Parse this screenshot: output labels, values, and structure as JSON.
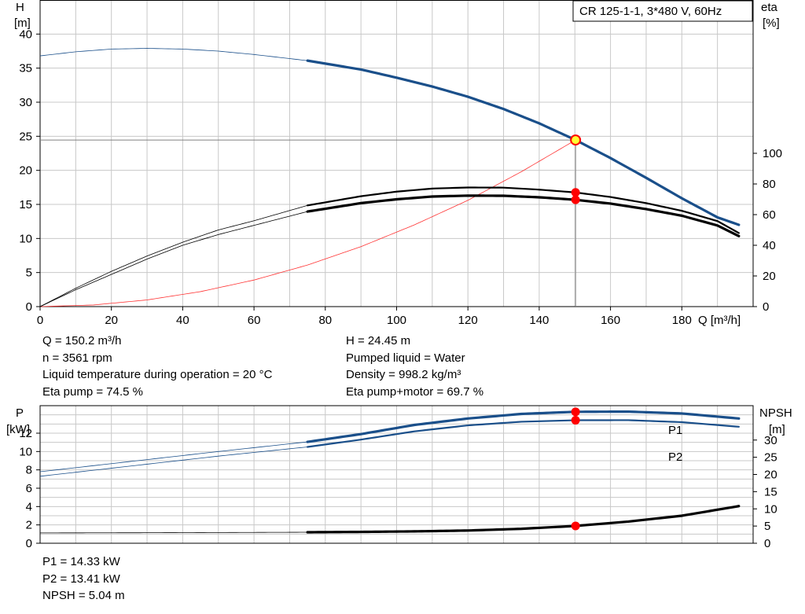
{
  "title_box": "CR 125-1-1, 3*480 V, 60Hz",
  "top_chart": {
    "left_axis_label": [
      "H",
      "[m]"
    ],
    "right_axis_label": [
      "eta",
      "[%]"
    ],
    "x_axis_label": "Q [m³/h]",
    "x_ticks": [
      0,
      20,
      40,
      60,
      80,
      100,
      120,
      140,
      160,
      180
    ],
    "left_ticks": [
      0,
      5,
      10,
      15,
      20,
      25,
      30,
      35,
      40
    ],
    "right_ticks": [
      0,
      20,
      40,
      60,
      80,
      100
    ]
  },
  "bottom_chart": {
    "left_axis_label": [
      "P",
      "[kW]"
    ],
    "right_axis_label": [
      "NPSH",
      "[m]"
    ],
    "left_ticks": [
      0,
      2,
      4,
      6,
      8,
      10,
      12
    ],
    "right_ticks": [
      0,
      5,
      10,
      15,
      20,
      25,
      30
    ],
    "p1_label": "P1",
    "p2_label": "P2"
  },
  "duty_info_left": [
    "Q = 150.2 m³/h",
    "n = 3561 rpm",
    "Liquid temperature during operation = 20 °C",
    "Eta pump = 74.5 %"
  ],
  "duty_info_right": [
    "H = 24.45 m",
    "Pumped liquid = Water",
    "Density = 998.2 kg/m³",
    "Eta pump+motor = 69.7 %"
  ],
  "power_info": [
    "P1 = 14.33 kW",
    "P2 = 13.41 kW",
    "NPSH = 5.04 m"
  ],
  "colors": {
    "head": "#1a4f8a",
    "efficiency": "#000000",
    "system_curve": "#ff3333",
    "power": "#1a4f8a",
    "npsh": "#000000",
    "duty_point": "#ff0000",
    "duty_point_head": "#ffff33",
    "grid": "#c8c8c8"
  },
  "chart_data": [
    {
      "type": "line",
      "title": "CR 125-1-1, 3*480 V, 60Hz",
      "xlabel": "Q [m³/h]",
      "ylabel": "H [m]",
      "y2label": "eta [%]",
      "xlim": [
        0,
        200
      ],
      "ylim": [
        0,
        45
      ],
      "y2lim": [
        0,
        200
      ],
      "grid": true,
      "operating_range_q": [
        75,
        196
      ],
      "duty_point": {
        "q": 150.2,
        "h": 24.45,
        "eta_pump": 74.5,
        "eta_total": 69.7
      },
      "series": [
        {
          "key": "head",
          "axis": "left",
          "x": [
            0,
            10,
            20,
            30,
            40,
            50,
            60,
            75,
            90,
            100,
            110,
            120,
            130,
            140,
            150,
            160,
            170,
            180,
            190,
            196
          ],
          "y": [
            36.8,
            37.4,
            37.8,
            37.9,
            37.8,
            37.5,
            37.0,
            36.1,
            34.8,
            33.6,
            32.3,
            30.8,
            29.0,
            26.9,
            24.5,
            21.8,
            18.9,
            15.9,
            13.1,
            12.0
          ]
        },
        {
          "key": "eta_pump",
          "axis": "right",
          "x": [
            0,
            10,
            20,
            30,
            40,
            50,
            60,
            75,
            90,
            100,
            110,
            120,
            130,
            140,
            150,
            160,
            170,
            180,
            190,
            196
          ],
          "y": [
            0,
            12,
            23,
            33,
            42,
            50,
            56,
            66,
            72,
            75,
            77,
            77.7,
            77.6,
            76.3,
            74.5,
            71.5,
            67.5,
            62.5,
            55.8,
            48
          ]
        },
        {
          "key": "eta_total",
          "axis": "right",
          "x": [
            0,
            10,
            20,
            30,
            40,
            50,
            60,
            75,
            90,
            100,
            110,
            120,
            130,
            140,
            150,
            160,
            170,
            180,
            190,
            196
          ],
          "y": [
            0,
            11,
            21,
            31,
            40,
            47,
            53,
            62,
            67.5,
            70,
            71.8,
            72.4,
            72.3,
            71.3,
            69.7,
            67.2,
            63.6,
            59.3,
            52.9,
            46
          ]
        },
        {
          "key": "system_curve",
          "axis": "left",
          "x": [
            0,
            15,
            30,
            45,
            60,
            75,
            90,
            105,
            120,
            135,
            150.2
          ],
          "y": [
            0,
            0.24,
            0.98,
            2.2,
            3.9,
            6.1,
            8.8,
            12.0,
            15.6,
            19.8,
            24.45
          ]
        }
      ]
    },
    {
      "type": "line",
      "ylabel": "P [kW]",
      "y2label": "NPSH [m]",
      "xlim": [
        0,
        200
      ],
      "ylim": [
        0,
        15
      ],
      "y2lim": [
        0,
        40
      ],
      "grid": true,
      "operating_range_q": [
        75,
        196
      ],
      "duty_point": {
        "q": 150.2,
        "p1": 14.33,
        "p2": 13.41,
        "npsh": 5.04
      },
      "series": [
        {
          "key": "p1",
          "name": "P1",
          "axis": "left",
          "x": [
            0,
            25,
            50,
            75,
            90,
            105,
            120,
            135,
            150,
            165,
            180,
            196
          ],
          "y": [
            7.8,
            8.9,
            10.0,
            11.05,
            11.9,
            12.9,
            13.6,
            14.1,
            14.33,
            14.35,
            14.15,
            13.6
          ]
        },
        {
          "key": "p2",
          "name": "P2",
          "axis": "left",
          "x": [
            0,
            25,
            50,
            75,
            90,
            105,
            120,
            135,
            150,
            165,
            180,
            196
          ],
          "y": [
            7.3,
            8.4,
            9.5,
            10.5,
            11.3,
            12.2,
            12.85,
            13.25,
            13.41,
            13.42,
            13.2,
            12.7
          ]
        },
        {
          "key": "npsh",
          "axis": "right",
          "x": [
            0,
            30,
            60,
            75,
            90,
            105,
            120,
            135,
            150.2,
            165,
            180,
            196
          ],
          "y": [
            3.0,
            3.05,
            3.15,
            3.2,
            3.3,
            3.45,
            3.7,
            4.2,
            5.04,
            6.3,
            8.0,
            10.8
          ]
        }
      ]
    }
  ]
}
